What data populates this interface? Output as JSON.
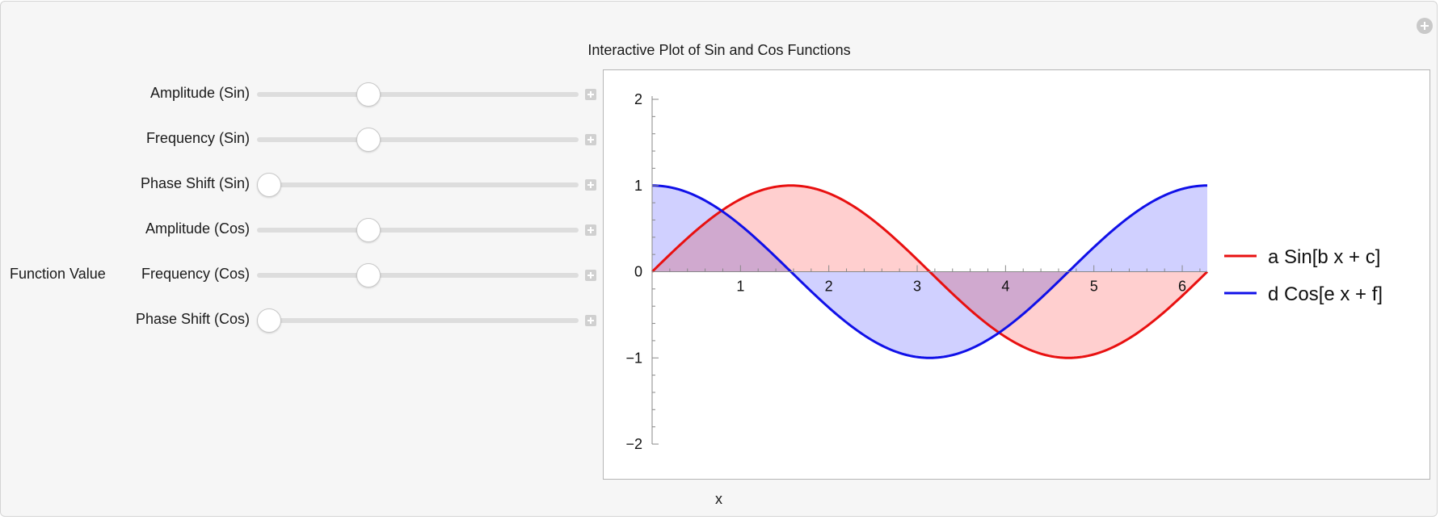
{
  "title": "Interactive Plot of Sin and Cos Functions",
  "ylabel": "Function Value",
  "xlabel": "x",
  "controls": [
    {
      "label": "Amplitude (Sin)",
      "value": 1,
      "min": 0,
      "max": 3
    },
    {
      "label": "Frequency (Sin)",
      "value": 1,
      "min": 0,
      "max": 3
    },
    {
      "label": "Phase Shift (Sin)",
      "value": 0,
      "min": 0,
      "max": 6.2832
    },
    {
      "label": "Amplitude (Cos)",
      "value": 1,
      "min": 0,
      "max": 3
    },
    {
      "label": "Frequency (Cos)",
      "value": 1,
      "min": 0,
      "max": 3
    },
    {
      "label": "Phase Shift (Cos)",
      "value": 0,
      "min": 0,
      "max": 6.2832
    }
  ],
  "chart_data": {
    "type": "area",
    "xlim": [
      0,
      6.2832
    ],
    "ylim": [
      -2,
      2
    ],
    "x_ticks": [
      "1",
      "2",
      "3",
      "4",
      "5",
      "6"
    ],
    "y_ticks": [
      "2",
      "1",
      "0",
      "−1",
      "−2"
    ],
    "series": [
      {
        "name": "a Sin[b x + c]",
        "color": "#e81010",
        "fill": "#ffcccc",
        "x": [
          0,
          0.7854,
          1.5708,
          2.3562,
          3.1416,
          3.927,
          4.7124,
          5.4978,
          6.2832
        ],
        "y": [
          0,
          0.7071,
          1,
          0.7071,
          0,
          -0.7071,
          -1,
          -0.7071,
          0
        ]
      },
      {
        "name": "d Cos[e x + f]",
        "color": "#1010e8",
        "fill": "#c8c8ff",
        "x": [
          0,
          0.7854,
          1.5708,
          2.3562,
          3.1416,
          3.927,
          4.7124,
          5.4978,
          6.2832
        ],
        "y": [
          1,
          0.7071,
          0,
          -0.7071,
          -1,
          -0.7071,
          0,
          0.7071,
          1
        ]
      }
    ],
    "legend_position": "right",
    "grid": false
  }
}
